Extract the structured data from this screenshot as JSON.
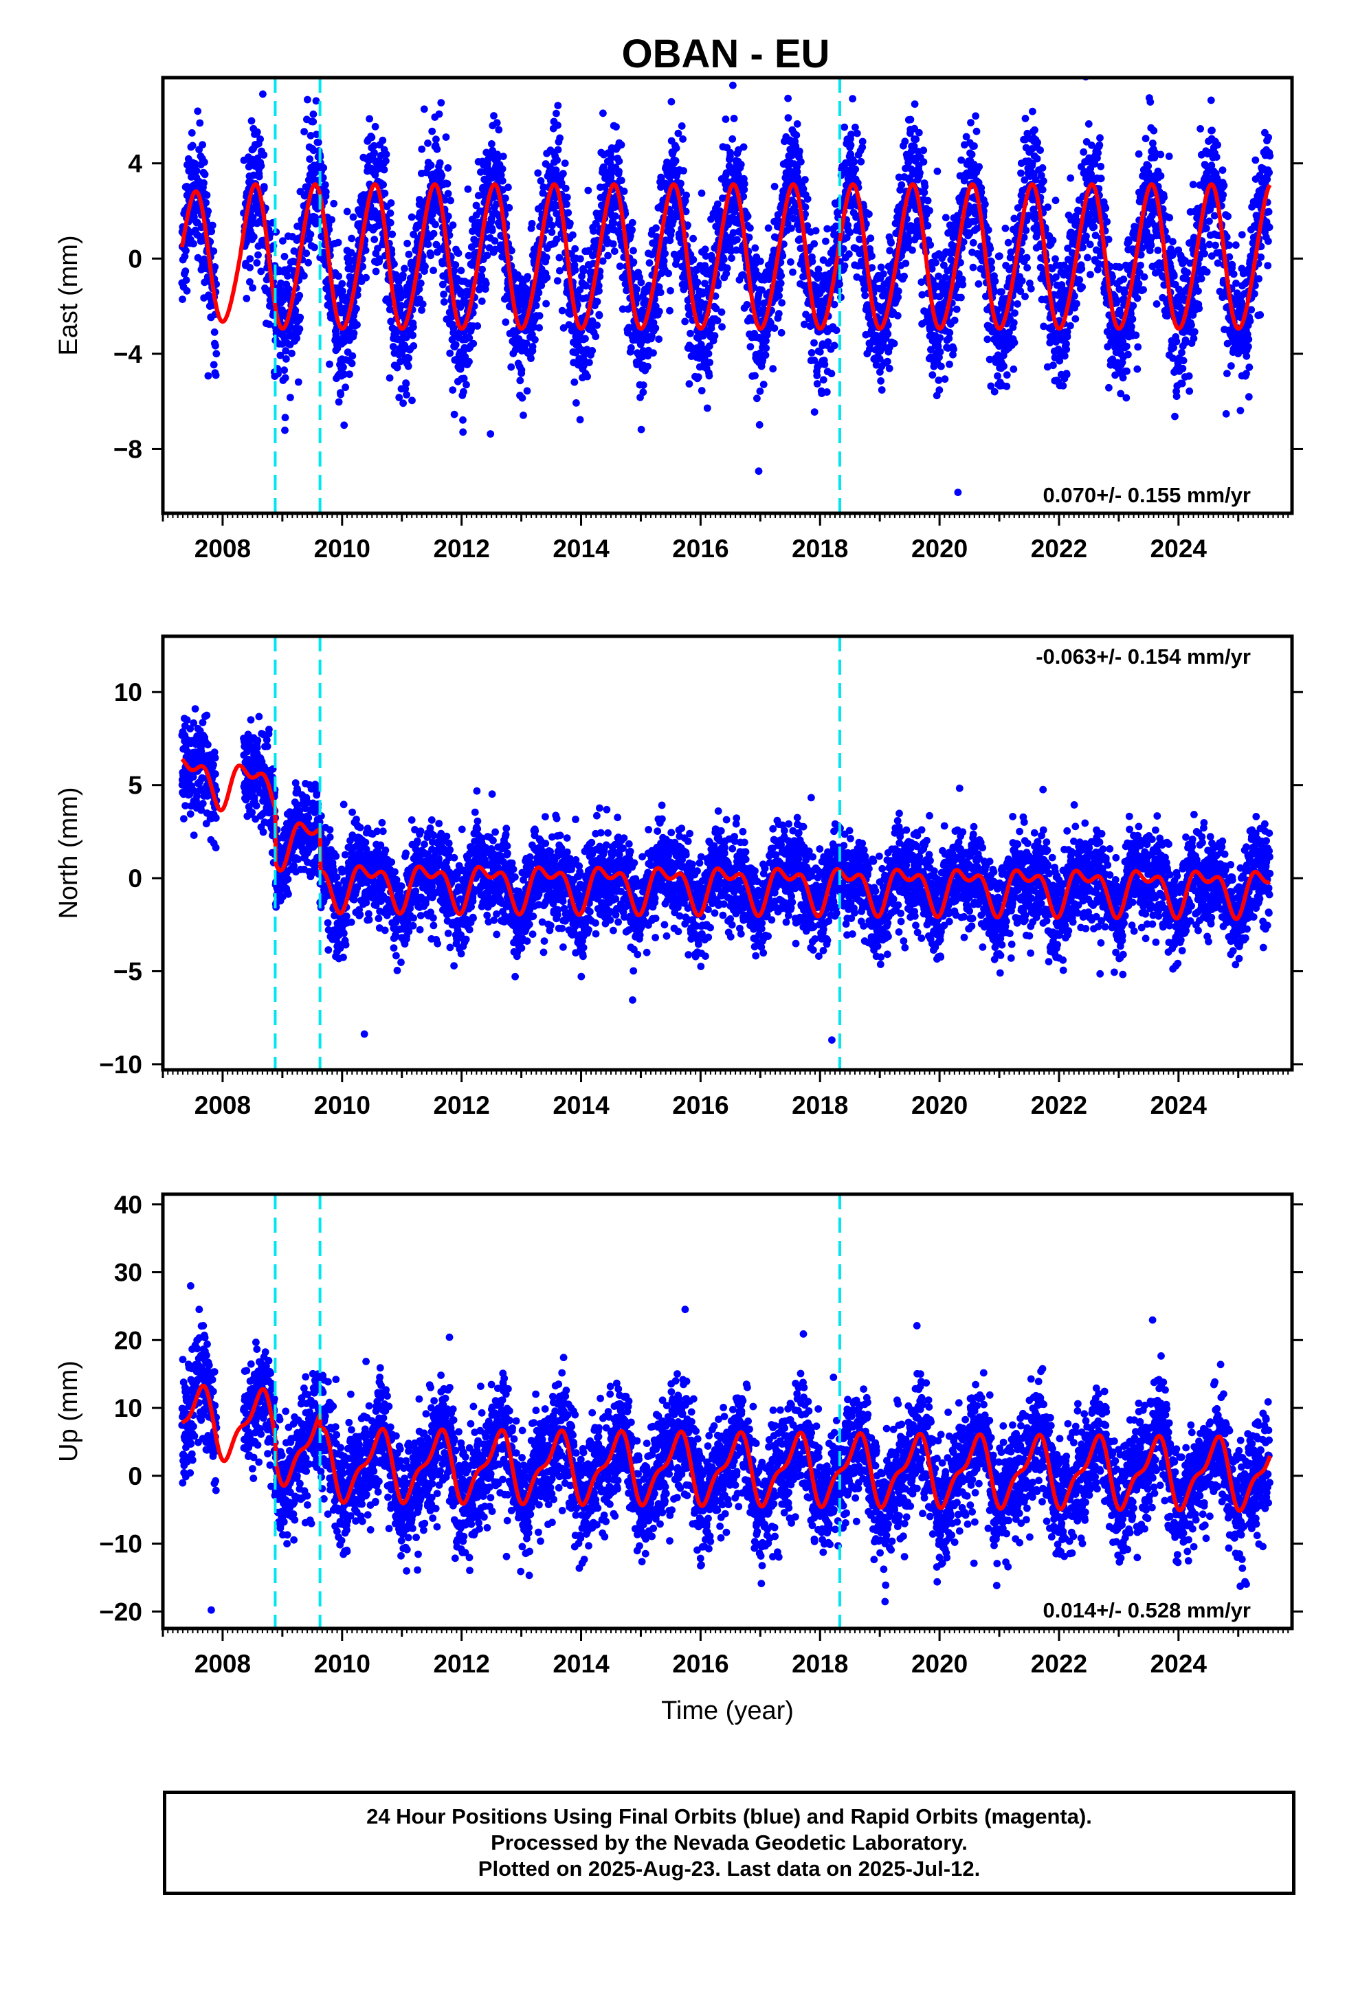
{
  "title": "OBAN - EU",
  "chart_data": [
    {
      "type": "scatter",
      "ylabel": "East (mm)",
      "xlabel": "",
      "xlim": [
        2007.0,
        2025.9
      ],
      "ylim": [
        -10.7,
        7.6
      ],
      "x_ticks": [
        2008,
        2010,
        2012,
        2014,
        2016,
        2018,
        2020,
        2022,
        2024
      ],
      "y_ticks": [
        -8,
        -4,
        0,
        4
      ],
      "rate_label": "0.070+/- 0.155 mm/yr",
      "rate_position": "bottom-right",
      "steps": [
        2008.88,
        2009.63,
        2018.33
      ],
      "series": [
        {
          "color": "#0000ff",
          "style": "points",
          "model": {
            "base": 0.0,
            "trend": 0.07,
            "annual_amp": 3.0,
            "annual_phase": 0.1,
            "semi_amp": 0.3,
            "noise_sd": 1.45,
            "start_offset": 0.0
          }
        },
        {
          "color": "#ff0000",
          "style": "fit-line"
        }
      ],
      "yscale": "linear"
    },
    {
      "type": "scatter",
      "ylabel": "North (mm)",
      "xlabel": "",
      "xlim": [
        2007.0,
        2025.9
      ],
      "ylim": [
        -10.3,
        13.0
      ],
      "x_ticks": [
        2008,
        2010,
        2012,
        2014,
        2016,
        2018,
        2020,
        2022,
        2024
      ],
      "y_ticks": [
        -10,
        -5,
        0,
        5,
        10
      ],
      "rate_label": "-0.063+/- 0.154 mm/yr",
      "rate_position": "top-right",
      "steps": [
        2008.88,
        2009.63,
        2018.33
      ],
      "series": [
        {
          "color": "#0000ff",
          "style": "points"
        },
        {
          "color": "#ff0000",
          "style": "fit-line"
        }
      ],
      "yscale": "linear"
    },
    {
      "type": "scatter",
      "ylabel": "Up (mm)",
      "xlabel": "Time (year)",
      "xlim": [
        2007.0,
        2025.9
      ],
      "ylim": [
        -22.5,
        41.5
      ],
      "x_ticks": [
        2008,
        2010,
        2012,
        2014,
        2016,
        2018,
        2020,
        2022,
        2024
      ],
      "y_ticks": [
        -20,
        -10,
        0,
        10,
        20,
        30,
        40
      ],
      "rate_label": "0.014+/- 0.528 mm/yr",
      "rate_position": "bottom-right",
      "steps": [
        2008.88,
        2009.63,
        2018.33
      ],
      "series": [
        {
          "color": "#0000ff",
          "style": "points"
        },
        {
          "color": "#ff0000",
          "style": "fit-line"
        }
      ],
      "yscale": "linear"
    }
  ],
  "footer": {
    "line1": "24 Hour Positions Using Final Orbits (blue) and Rapid Orbits (magenta).",
    "line2": "Processed by the Nevada Geodetic Laboratory.",
    "line3": "Plotted on 2025-Aug-23. Last data on 2025-Jul-12."
  }
}
